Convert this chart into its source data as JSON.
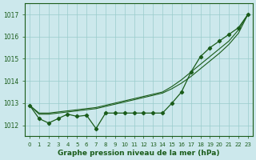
{
  "hours": [
    0,
    1,
    2,
    3,
    4,
    5,
    6,
    7,
    8,
    9,
    10,
    11,
    12,
    13,
    14,
    15,
    16,
    17,
    18,
    19,
    20,
    21,
    22,
    23
  ],
  "pressure_main": [
    1012.9,
    1012.3,
    1012.1,
    1012.3,
    1012.5,
    1012.4,
    1012.45,
    1011.85,
    1012.55,
    1012.55,
    1012.55,
    1012.55,
    1012.55,
    1012.55,
    1012.55,
    1013.0,
    1013.5,
    1014.4,
    1015.1,
    1015.5,
    1015.8,
    1016.1,
    1016.4,
    1017.0
  ],
  "pressure_line2": [
    1012.9,
    1012.55,
    1012.55,
    1012.6,
    1012.65,
    1012.7,
    1012.75,
    1012.8,
    1012.9,
    1013.0,
    1013.1,
    1013.2,
    1013.3,
    1013.4,
    1013.5,
    1013.75,
    1014.05,
    1014.4,
    1014.75,
    1015.1,
    1015.45,
    1015.8,
    1016.3,
    1017.0
  ],
  "pressure_line3": [
    1012.9,
    1012.5,
    1012.5,
    1012.55,
    1012.6,
    1012.65,
    1012.7,
    1012.75,
    1012.85,
    1012.95,
    1013.05,
    1013.15,
    1013.25,
    1013.35,
    1013.45,
    1013.65,
    1013.9,
    1014.2,
    1014.55,
    1014.9,
    1015.25,
    1015.65,
    1016.15,
    1017.0
  ],
  "bg_color": "#cce8ec",
  "line_color": "#1a5c1a",
  "grid_color": "#99cccc",
  "text_color": "#1a5c1a",
  "ylim": [
    1011.5,
    1017.5
  ],
  "yticks": [
    1012,
    1013,
    1014,
    1015,
    1016,
    1017
  ],
  "xlabel": "Graphe pression niveau de la mer (hPa)",
  "xlim": [
    -0.5,
    23.5
  ],
  "figwidth": 3.2,
  "figheight": 2.0,
  "dpi": 100
}
